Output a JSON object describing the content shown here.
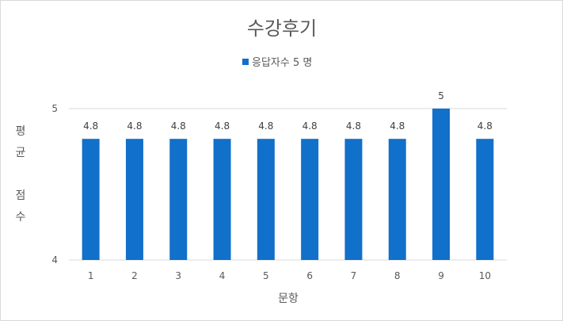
{
  "chart_data": {
    "type": "bar",
    "title": "수강후기",
    "legend": {
      "label": "응답자수 5 명",
      "position": "top"
    },
    "xlabel": "문항",
    "ylabel": "평균 점수",
    "ylabel_lines": [
      "평",
      "균",
      "",
      "점",
      "수"
    ],
    "categories": [
      "1",
      "2",
      "3",
      "4",
      "5",
      "6",
      "7",
      "8",
      "9",
      "10"
    ],
    "series": [
      {
        "name": "응답자수 5 명",
        "values": [
          4.8,
          4.8,
          4.8,
          4.8,
          4.8,
          4.8,
          4.8,
          4.8,
          5,
          4.8
        ],
        "data_labels": [
          "4.8",
          "4.8",
          "4.8",
          "4.8",
          "4.8",
          "4.8",
          "4.8",
          "4.8",
          "5",
          "4.8"
        ],
        "color": "#1170c9"
      }
    ],
    "ylim": [
      4,
      5
    ],
    "yticks": [
      "4",
      "5"
    ],
    "grid": true
  }
}
